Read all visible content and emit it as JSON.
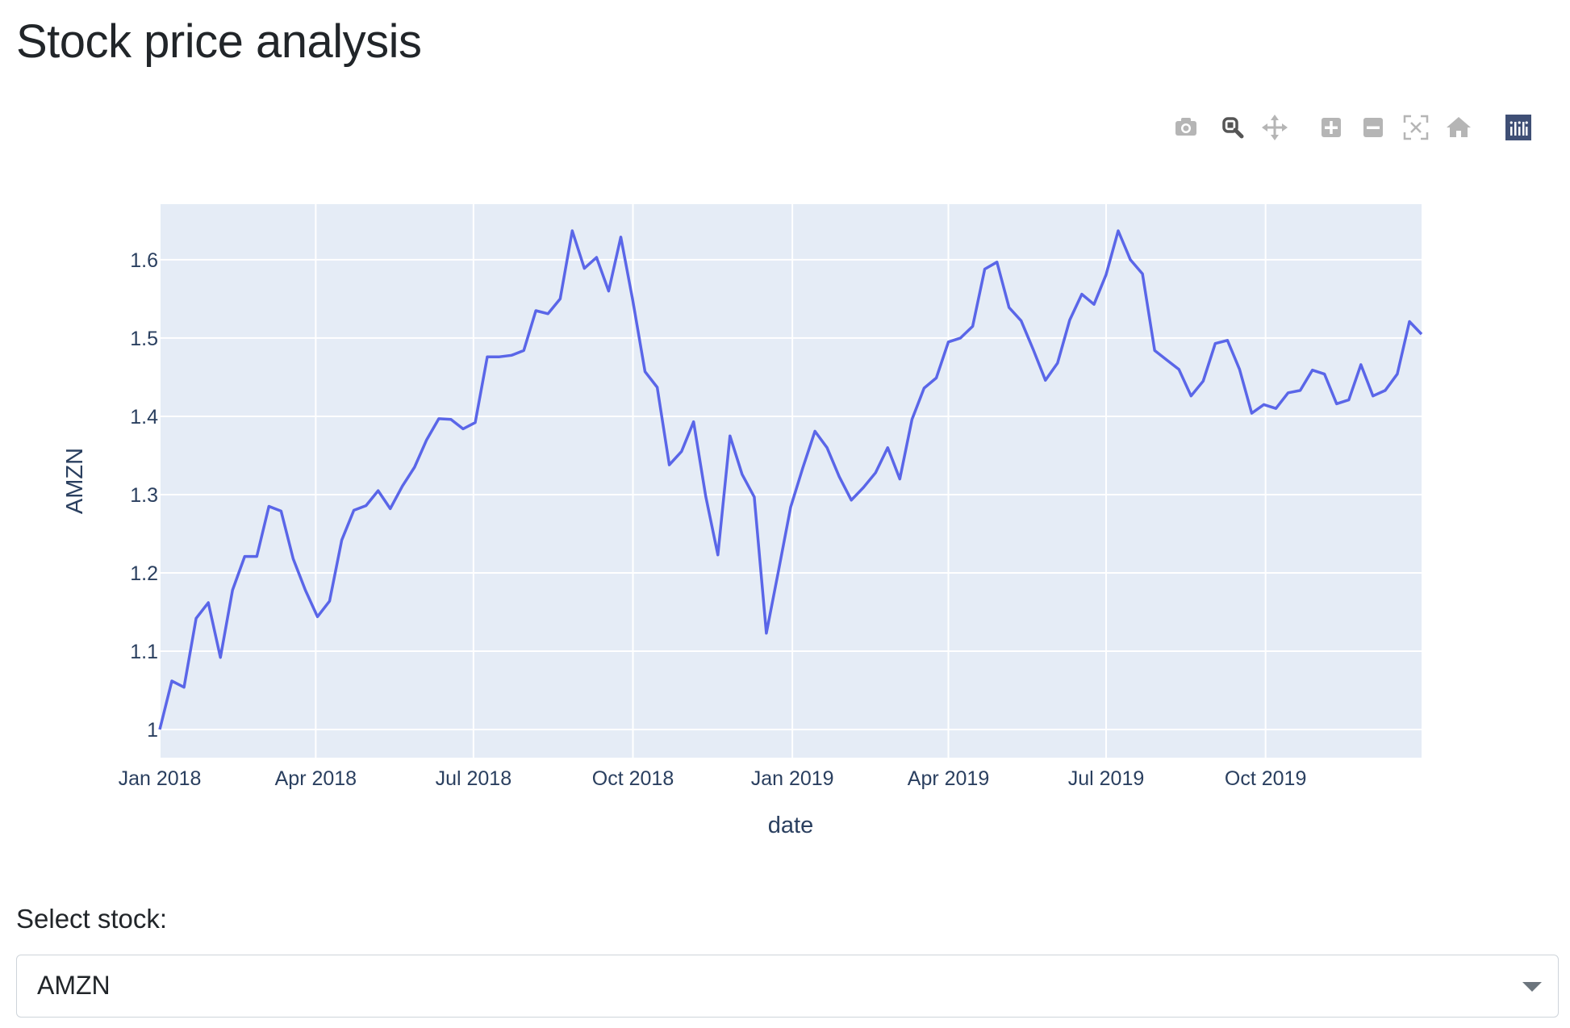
{
  "page": {
    "title": "Stock price analysis"
  },
  "modebar": {
    "icons": [
      "camera-icon",
      "zoom-icon",
      "pan-icon",
      "zoom-in-icon",
      "zoom-out-icon",
      "autoscale-icon",
      "reset-axes-icon",
      "plotly-logo-icon"
    ]
  },
  "colors": {
    "line": "#5a66e8",
    "plot_bg": "#e5ecf6",
    "grid": "#ffffff",
    "axis_text": "#2a3f5f",
    "modebar_icon": "#b5b5b5",
    "modebar_active": "#555555",
    "logo_bg": "#3f4f75"
  },
  "chart_data": {
    "type": "line",
    "title": "",
    "xlabel": "date",
    "ylabel": "AMZN",
    "x_ticks": [
      "Jan 2018",
      "Apr 2018",
      "Jul 2018",
      "Oct 2018",
      "Jan 2019",
      "Apr 2019",
      "Jul 2019",
      "Oct 2019"
    ],
    "y_ticks": [
      "1",
      "1.1",
      "1.2",
      "1.3",
      "1.4",
      "1.5",
      "1.6"
    ],
    "ylim": [
      0.964,
      1.671
    ],
    "xlim": [
      "2018-01-01",
      "2019-12-30"
    ],
    "grid": true,
    "series": [
      {
        "name": "AMZN",
        "x": [
          "2018-01-01",
          "2018-01-08",
          "2018-01-15",
          "2018-01-22",
          "2018-01-29",
          "2018-02-05",
          "2018-02-12",
          "2018-02-19",
          "2018-02-26",
          "2018-03-05",
          "2018-03-12",
          "2018-03-19",
          "2018-03-26",
          "2018-04-02",
          "2018-04-09",
          "2018-04-16",
          "2018-04-23",
          "2018-04-30",
          "2018-05-07",
          "2018-05-14",
          "2018-05-21",
          "2018-05-28",
          "2018-06-04",
          "2018-06-11",
          "2018-06-18",
          "2018-06-25",
          "2018-07-02",
          "2018-07-09",
          "2018-07-16",
          "2018-07-23",
          "2018-07-30",
          "2018-08-06",
          "2018-08-13",
          "2018-08-20",
          "2018-08-27",
          "2018-09-03",
          "2018-09-10",
          "2018-09-17",
          "2018-09-24",
          "2018-10-01",
          "2018-10-08",
          "2018-10-15",
          "2018-10-22",
          "2018-10-29",
          "2018-11-05",
          "2018-11-12",
          "2018-11-19",
          "2018-11-26",
          "2018-12-03",
          "2018-12-10",
          "2018-12-17",
          "2018-12-24",
          "2018-12-31",
          "2019-01-07",
          "2019-01-14",
          "2019-01-21",
          "2019-01-28",
          "2019-02-04",
          "2019-02-11",
          "2019-02-18",
          "2019-02-25",
          "2019-03-04",
          "2019-03-11",
          "2019-03-18",
          "2019-03-25",
          "2019-04-01",
          "2019-04-08",
          "2019-04-15",
          "2019-04-22",
          "2019-04-29",
          "2019-05-06",
          "2019-05-13",
          "2019-05-20",
          "2019-05-27",
          "2019-06-03",
          "2019-06-10",
          "2019-06-17",
          "2019-06-24",
          "2019-07-01",
          "2019-07-08",
          "2019-07-15",
          "2019-07-22",
          "2019-07-29",
          "2019-08-05",
          "2019-08-12",
          "2019-08-19",
          "2019-08-26",
          "2019-09-02",
          "2019-09-09",
          "2019-09-16",
          "2019-09-23",
          "2019-09-30",
          "2019-10-07",
          "2019-10-14",
          "2019-10-21",
          "2019-10-28",
          "2019-11-04",
          "2019-11-11",
          "2019-11-18",
          "2019-11-25",
          "2019-12-02",
          "2019-12-09",
          "2019-12-16",
          "2019-12-23",
          "2019-12-30"
        ],
        "values": [
          1.0,
          1.062,
          1.054,
          1.142,
          1.162,
          1.092,
          1.178,
          1.221,
          1.221,
          1.285,
          1.279,
          1.218,
          1.178,
          1.144,
          1.164,
          1.242,
          1.28,
          1.286,
          1.305,
          1.282,
          1.311,
          1.335,
          1.37,
          1.397,
          1.396,
          1.384,
          1.392,
          1.476,
          1.476,
          1.478,
          1.484,
          1.535,
          1.531,
          1.55,
          1.637,
          1.589,
          1.603,
          1.56,
          1.629,
          1.547,
          1.457,
          1.437,
          1.338,
          1.355,
          1.393,
          1.298,
          1.223,
          1.375,
          1.326,
          1.297,
          1.123,
          1.203,
          1.284,
          1.334,
          1.381,
          1.36,
          1.323,
          1.293,
          1.309,
          1.328,
          1.36,
          1.32,
          1.396,
          1.436,
          1.449,
          1.495,
          1.5,
          1.515,
          1.588,
          1.597,
          1.539,
          1.522,
          1.485,
          1.446,
          1.468,
          1.523,
          1.556,
          1.543,
          1.581,
          1.637,
          1.6,
          1.582,
          1.484,
          1.472,
          1.46,
          1.426,
          1.445,
          1.493,
          1.497,
          1.46,
          1.404,
          1.415,
          1.41,
          1.43,
          1.433,
          1.459,
          1.454,
          1.416,
          1.421,
          1.466,
          1.426,
          1.433,
          1.454,
          1.521,
          1.505
        ]
      }
    ]
  },
  "select": {
    "label": "Select stock:",
    "value": "AMZN"
  }
}
